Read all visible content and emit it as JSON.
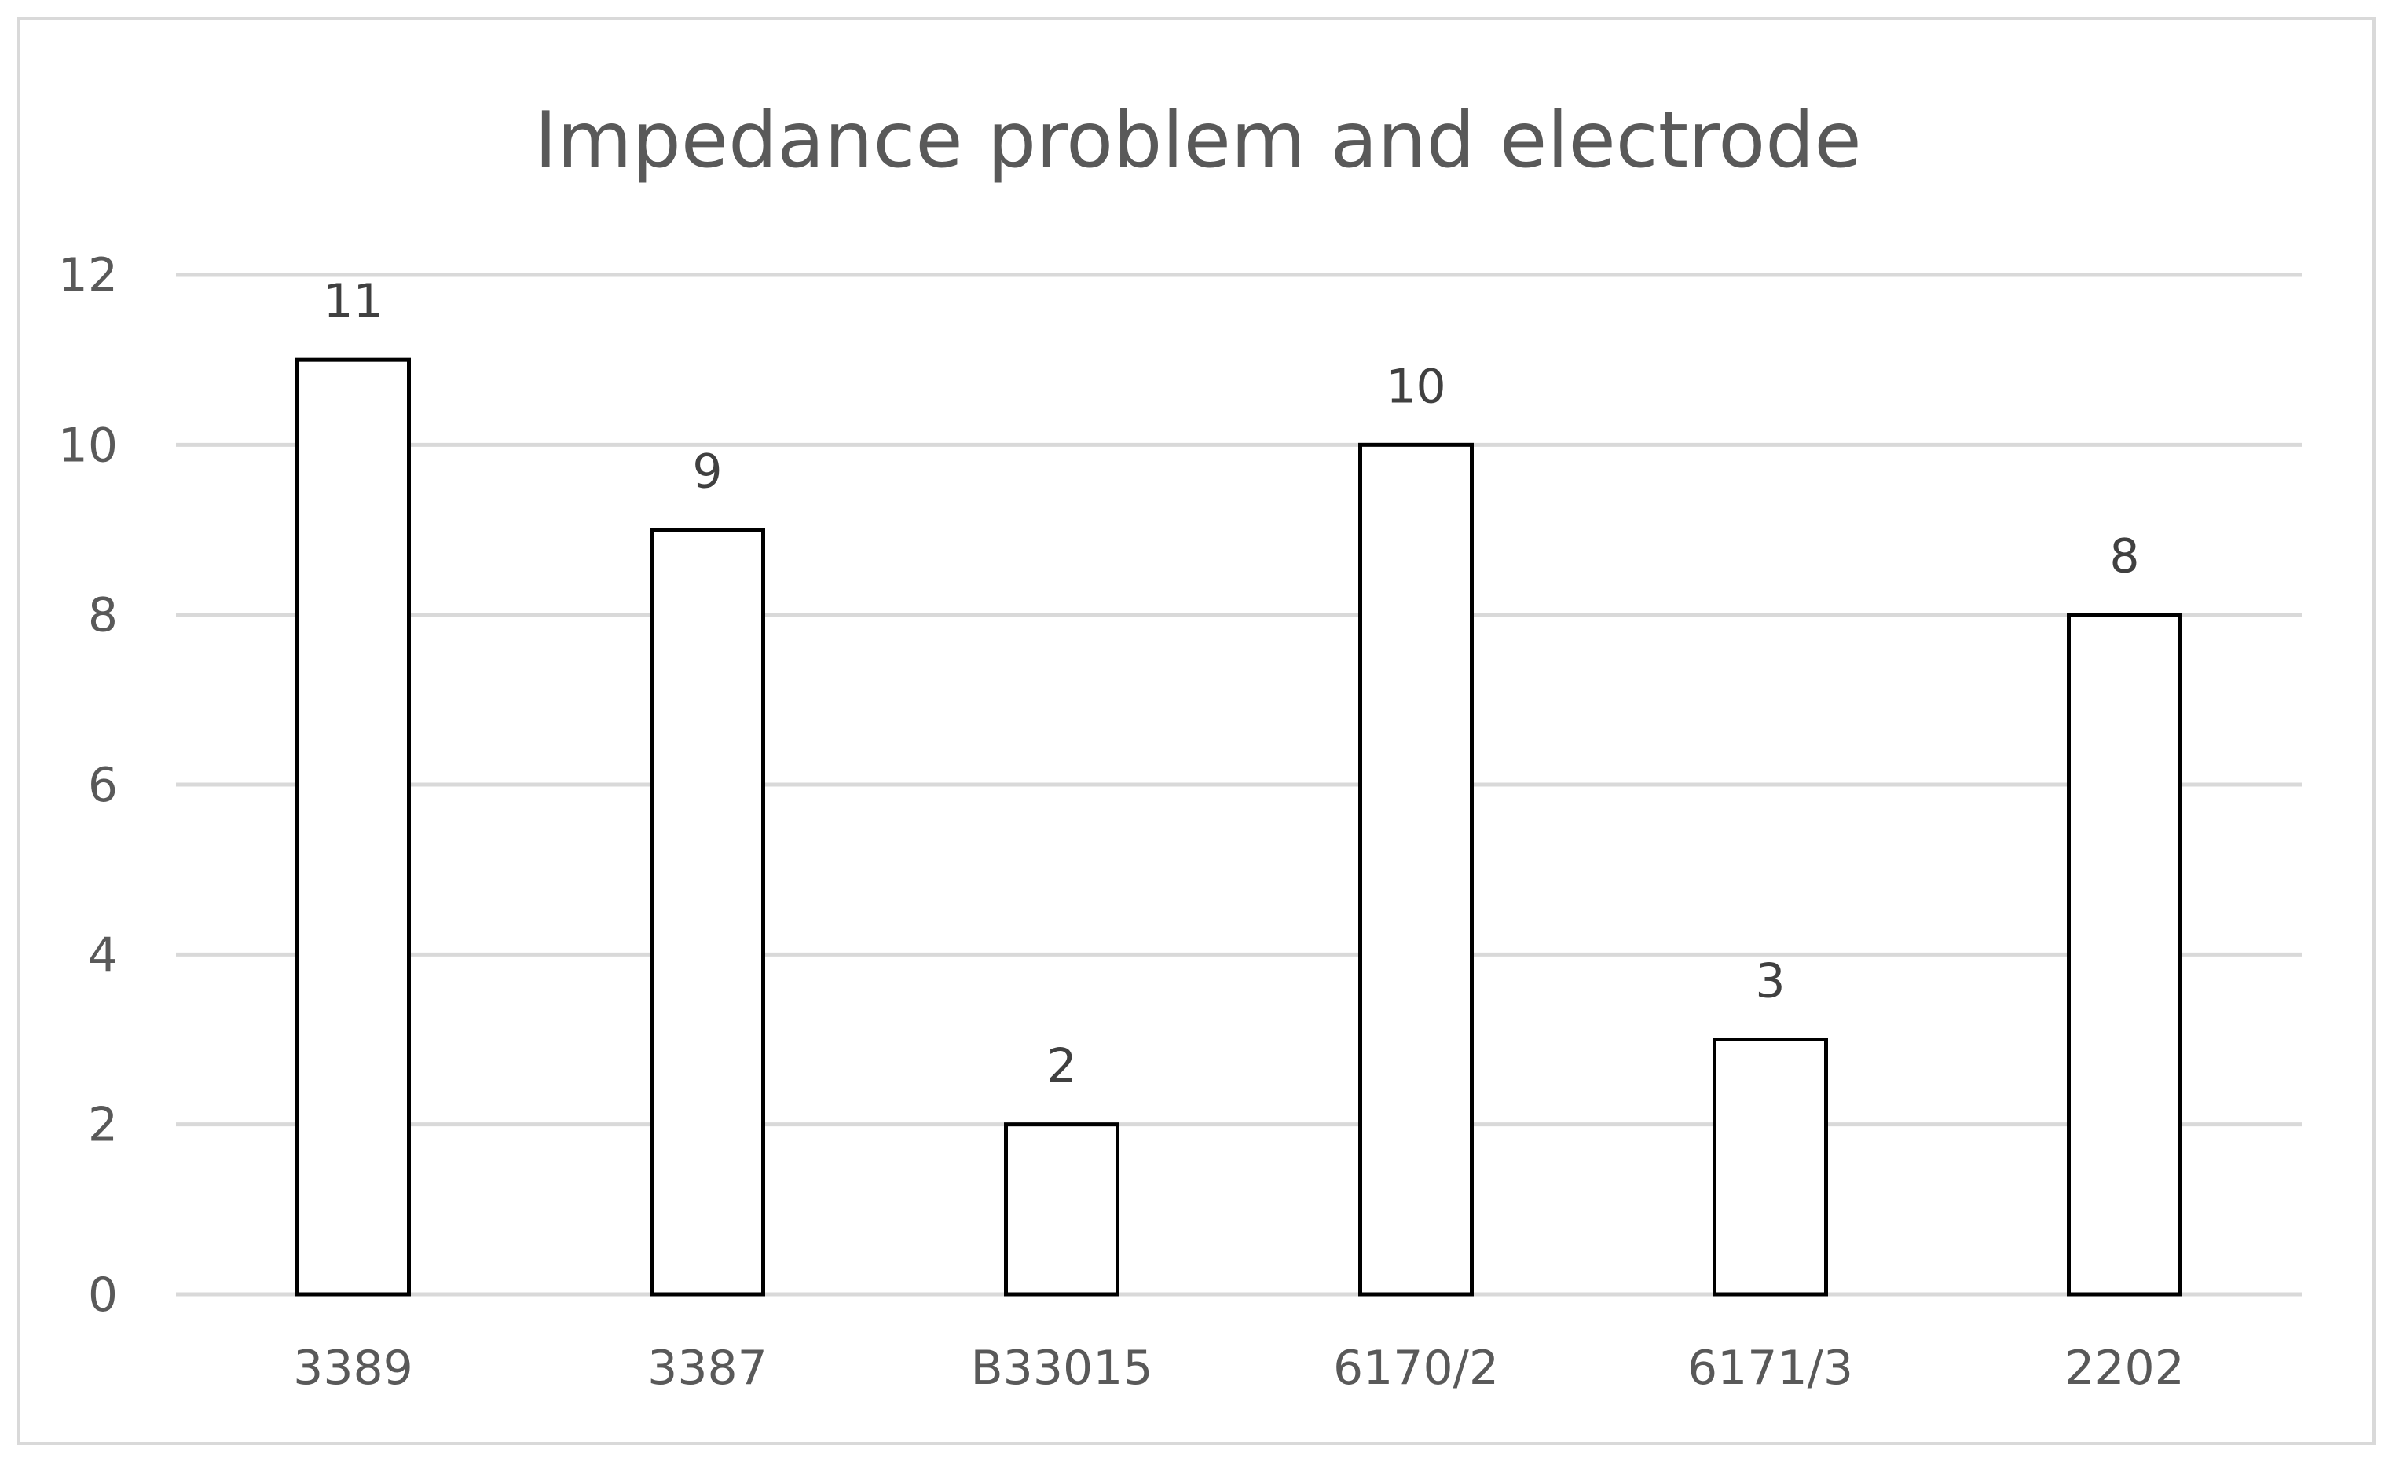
{
  "chart_data": {
    "type": "bar",
    "title": "Impedance problem and electrode",
    "xlabel": "",
    "ylabel": "",
    "categories": [
      "3389",
      "3387",
      "B33015",
      "6170/2",
      "6171/3",
      "2202"
    ],
    "values": [
      11,
      9,
      2,
      10,
      3,
      8
    ],
    "ylim": [
      0,
      12
    ],
    "y_ticks": [
      "0",
      "2",
      "4",
      "6",
      "8",
      "10",
      "12"
    ],
    "grid": true,
    "legend": "none",
    "colors": {
      "bar_fill": "#ffffff",
      "bar_stroke": "#000000",
      "grid": "#d9d9d9",
      "text": "#595959"
    }
  }
}
